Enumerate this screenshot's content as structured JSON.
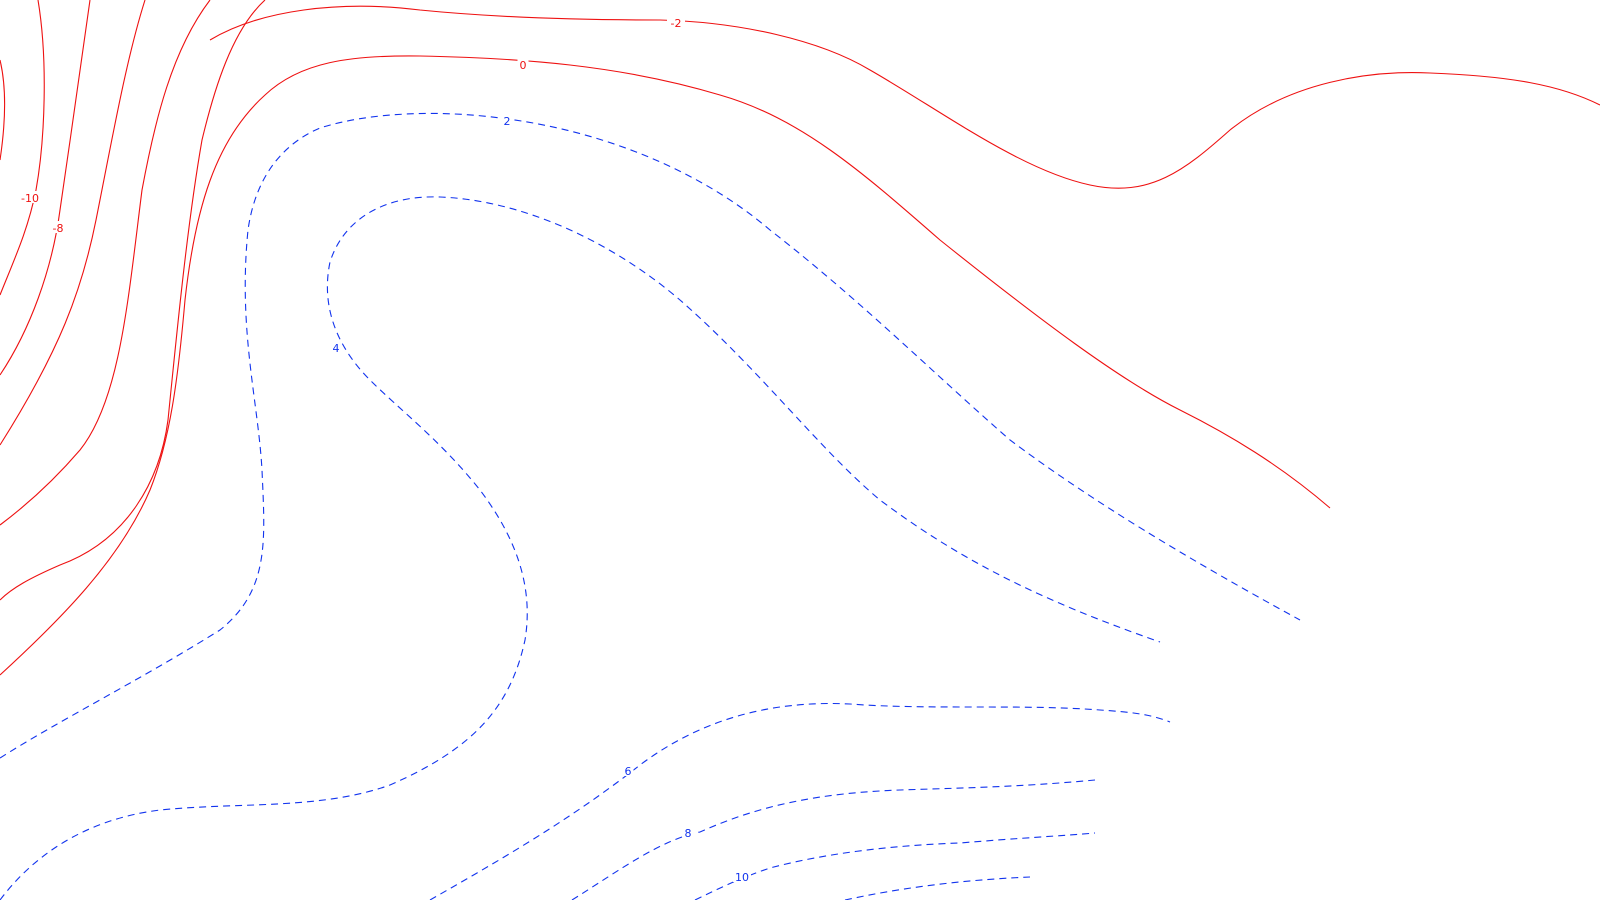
{
  "chart_data": {
    "type": "contour",
    "title": "",
    "xlabel": "",
    "ylabel": "",
    "grid": false,
    "legend": "none",
    "negative_color": "#ee1111",
    "positive_color": "#1133ee",
    "negative_style": "solid",
    "positive_style": "dashed",
    "levels": [
      {
        "value": -14,
        "sign": "negative",
        "label": ""
      },
      {
        "value": -12,
        "sign": "negative",
        "label": ""
      },
      {
        "value": -10,
        "sign": "negative",
        "label": "-10"
      },
      {
        "value": -8,
        "sign": "negative",
        "label": "-8"
      },
      {
        "value": -6,
        "sign": "negative",
        "label": ""
      },
      {
        "value": -4,
        "sign": "negative",
        "label": ""
      },
      {
        "value": -2,
        "sign": "negative",
        "label": "-2"
      },
      {
        "value": 0,
        "sign": "negative",
        "label": "0"
      },
      {
        "value": 2,
        "sign": "positive",
        "label": "2"
      },
      {
        "value": 4,
        "sign": "positive",
        "label": "4"
      },
      {
        "value": 6,
        "sign": "positive",
        "label": "6"
      },
      {
        "value": 8,
        "sign": "positive",
        "label": "8"
      },
      {
        "value": 10,
        "sign": "positive",
        "label": "10"
      },
      {
        "value": 12,
        "sign": "positive",
        "label": ""
      }
    ]
  }
}
